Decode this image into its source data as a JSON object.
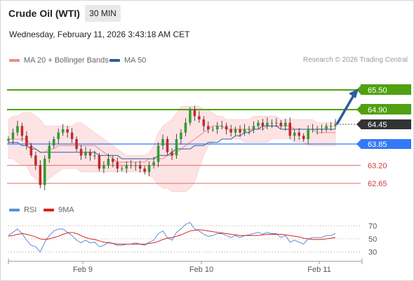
{
  "header": {
    "title": "Crude Oil (WTI)",
    "timeframe": "30 MIN",
    "datetime": "Wednesday, February 11, 2026 3:43:18 AM CET"
  },
  "legend": {
    "ma20_label": "MA 20 + Bollinger Bands",
    "ma50_label": "MA 50",
    "credit": "Research © 2026 Trading Central",
    "rsi_label": "RSI",
    "rsi9_label": "9MA"
  },
  "colors": {
    "ma20": "#f28a8a",
    "ma50": "#2e5d9a",
    "bands_fill": "#fde3e4",
    "candle": "#2e9e2e",
    "resistance": "#51a012",
    "pivot": "#3478f6",
    "support": "#e06b6b",
    "last": "#333333",
    "arrow": "#2b5c9e",
    "rsi": "#5b8fd6",
    "rsi9": "#d9241d"
  },
  "chart_data": [
    {
      "type": "candlestick",
      "ylim": [
        62.2,
        66.1
      ],
      "x_ticks": [
        "Feb 9",
        "Feb 10",
        "Feb 11"
      ],
      "levels": [
        {
          "value": 65.5,
          "label": "65.50",
          "kind": "resistance"
        },
        {
          "value": 64.9,
          "label": "64.90",
          "kind": "resistance"
        },
        {
          "value": 64.45,
          "label": "64.45",
          "kind": "last"
        },
        {
          "value": 63.85,
          "label": "63.85",
          "kind": "pivot"
        },
        {
          "value": 63.2,
          "label": "63.20",
          "kind": "support"
        },
        {
          "value": 62.65,
          "label": "62.65",
          "kind": "support"
        }
      ],
      "series": [
        {
          "name": "Price",
          "values": [
            64.0,
            64.2,
            64.4,
            64.1,
            63.8,
            63.5,
            63.2,
            62.6,
            63.4,
            63.8,
            64.0,
            64.2,
            64.3,
            64.2,
            64.0,
            63.7,
            63.5,
            63.6,
            63.5,
            63.5,
            63.1,
            63.2,
            63.4,
            63.3,
            63.1,
            63.1,
            63.2,
            63.2,
            63.2,
            63.1,
            63.0,
            63.2,
            63.3,
            63.8,
            64.0,
            63.6,
            63.5,
            64.0,
            64.2,
            64.5,
            64.9,
            64.7,
            64.6,
            64.4,
            64.3,
            64.3,
            64.4,
            64.4,
            64.3,
            64.2,
            64.3,
            64.2,
            64.3,
            64.3,
            64.4,
            64.5,
            64.4,
            64.5,
            64.5,
            64.5,
            64.4,
            64.5,
            64.1,
            64.2,
            64.1,
            64.0,
            64.3,
            64.3,
            64.3,
            64.3,
            64.4,
            64.4,
            64.45
          ]
        },
        {
          "name": "MA 20",
          "values": [
            64.0,
            64.0,
            64.0,
            64.0,
            64.0,
            63.8,
            63.7,
            63.6,
            63.6,
            63.7,
            63.7,
            63.8,
            63.8,
            63.8,
            63.8,
            63.8,
            63.8,
            63.8,
            63.8,
            63.8,
            63.7,
            63.6,
            63.5,
            63.4,
            63.3,
            63.3,
            63.3,
            63.3,
            63.3,
            63.3,
            63.3,
            63.4,
            63.4,
            63.4,
            63.4,
            63.5,
            63.5,
            63.6,
            63.7,
            63.8,
            63.9,
            64.0,
            64.1,
            64.2,
            64.3,
            64.4,
            64.4,
            64.4,
            64.3,
            64.3,
            64.3,
            64.3,
            64.3,
            64.3,
            64.3,
            64.3,
            64.3,
            64.4,
            64.4,
            64.4,
            64.4,
            64.4,
            64.4,
            64.3,
            64.3,
            64.3,
            64.3,
            64.3,
            64.2,
            64.2,
            64.2,
            64.2,
            64.2
          ]
        },
        {
          "name": "Upper Band",
          "values": [
            64.6,
            64.7,
            64.7,
            64.8,
            64.8,
            64.8,
            64.7,
            64.6,
            64.4,
            64.4,
            64.4,
            64.4,
            64.4,
            64.4,
            64.4,
            64.5,
            64.5,
            64.4,
            64.3,
            64.2,
            64.1,
            64.0,
            63.9,
            63.8,
            63.7,
            63.6,
            63.5,
            63.5,
            63.5,
            63.5,
            63.5,
            63.6,
            63.8,
            64.2,
            64.4,
            64.5,
            64.6,
            64.8,
            65.0,
            65.0,
            65.0,
            65.0,
            65.0,
            64.9,
            64.9,
            64.8,
            64.7,
            64.7,
            64.6,
            64.6,
            64.6,
            64.6,
            64.6,
            64.6,
            64.7,
            64.7,
            64.7,
            64.7,
            64.7,
            64.7,
            64.6,
            64.6,
            64.6,
            64.6,
            64.6,
            64.6,
            64.6,
            64.6,
            64.5,
            64.5,
            64.5,
            64.5,
            64.5
          ]
        },
        {
          "name": "Lower Band",
          "values": [
            63.4,
            63.4,
            63.3,
            63.2,
            63.2,
            62.9,
            62.8,
            62.6,
            62.7,
            62.8,
            62.9,
            63.0,
            63.1,
            63.1,
            63.1,
            63.1,
            63.0,
            63.0,
            63.0,
            63.0,
            63.0,
            63.0,
            63.0,
            63.0,
            63.0,
            63.0,
            63.0,
            63.0,
            63.0,
            63.0,
            63.0,
            62.9,
            62.8,
            62.6,
            62.5,
            62.5,
            62.4,
            62.4,
            62.4,
            62.4,
            62.5,
            62.7,
            63.1,
            63.5,
            63.8,
            63.9,
            64.0,
            64.0,
            64.0,
            64.0,
            64.0,
            64.0,
            63.9,
            63.9,
            63.9,
            63.9,
            63.9,
            63.9,
            64.0,
            64.0,
            64.0,
            64.0,
            64.0,
            63.9,
            63.9,
            63.9,
            63.8,
            63.8,
            63.8,
            63.8,
            63.8,
            63.8,
            63.8
          ]
        },
        {
          "name": "MA 50",
          "values": [
            63.9,
            63.9,
            63.9,
            63.8,
            63.8,
            63.7,
            63.7,
            63.6,
            63.6,
            63.6,
            63.6,
            63.6,
            63.6,
            63.6,
            63.6,
            63.6,
            63.6,
            63.6,
            63.6,
            63.6,
            63.5,
            63.5,
            63.5,
            63.5,
            63.5,
            63.4,
            63.4,
            63.4,
            63.4,
            63.4,
            63.4,
            63.4,
            63.4,
            63.5,
            63.5,
            63.5,
            63.6,
            63.7,
            63.7,
            63.7,
            63.7,
            63.8,
            63.8,
            63.8,
            63.9,
            63.9,
            63.9,
            64.0,
            64.0,
            64.0,
            64.1,
            64.1,
            64.2,
            64.2,
            64.3,
            64.3,
            64.4,
            64.4,
            64.4,
            64.4,
            64.3,
            64.3,
            64.3,
            64.3,
            64.3,
            64.3,
            64.3,
            64.3,
            64.3,
            64.3,
            64.3,
            64.3,
            64.3
          ]
        }
      ],
      "projection": {
        "from": 64.45,
        "to": 65.5
      }
    },
    {
      "type": "line",
      "ylim": [
        20,
        80
      ],
      "y_ticks": [
        70,
        50,
        30
      ],
      "series": [
        {
          "name": "RSI",
          "values": [
            55,
            60,
            65,
            58,
            48,
            40,
            38,
            30,
            45,
            55,
            62,
            65,
            65,
            60,
            55,
            48,
            44,
            48,
            44,
            45,
            38,
            40,
            45,
            43,
            40,
            40,
            42,
            42,
            44,
            42,
            40,
            45,
            48,
            58,
            62,
            52,
            48,
            60,
            65,
            72,
            75,
            65,
            62,
            57,
            54,
            55,
            58,
            58,
            55,
            52,
            55,
            52,
            55,
            56,
            58,
            60,
            57,
            60,
            58,
            58,
            52,
            55,
            45,
            48,
            45,
            42,
            50,
            52,
            52,
            52,
            55,
            55,
            58
          ]
        },
        {
          "name": "9MA",
          "values": [
            54,
            55,
            57,
            58,
            57,
            55,
            53,
            50,
            49,
            50,
            52,
            54,
            57,
            59,
            60,
            58,
            55,
            52,
            50,
            49,
            47,
            45,
            44,
            43,
            42,
            42,
            42,
            42,
            42,
            42,
            42,
            43,
            44,
            46,
            49,
            51,
            52,
            54,
            56,
            59,
            62,
            63,
            64,
            63,
            62,
            61,
            60,
            59,
            58,
            57,
            56,
            55,
            55,
            55,
            55,
            55,
            56,
            57,
            57,
            57,
            57,
            56,
            55,
            54,
            53,
            51,
            50,
            49,
            49,
            49,
            50,
            51,
            52
          ]
        }
      ]
    }
  ]
}
